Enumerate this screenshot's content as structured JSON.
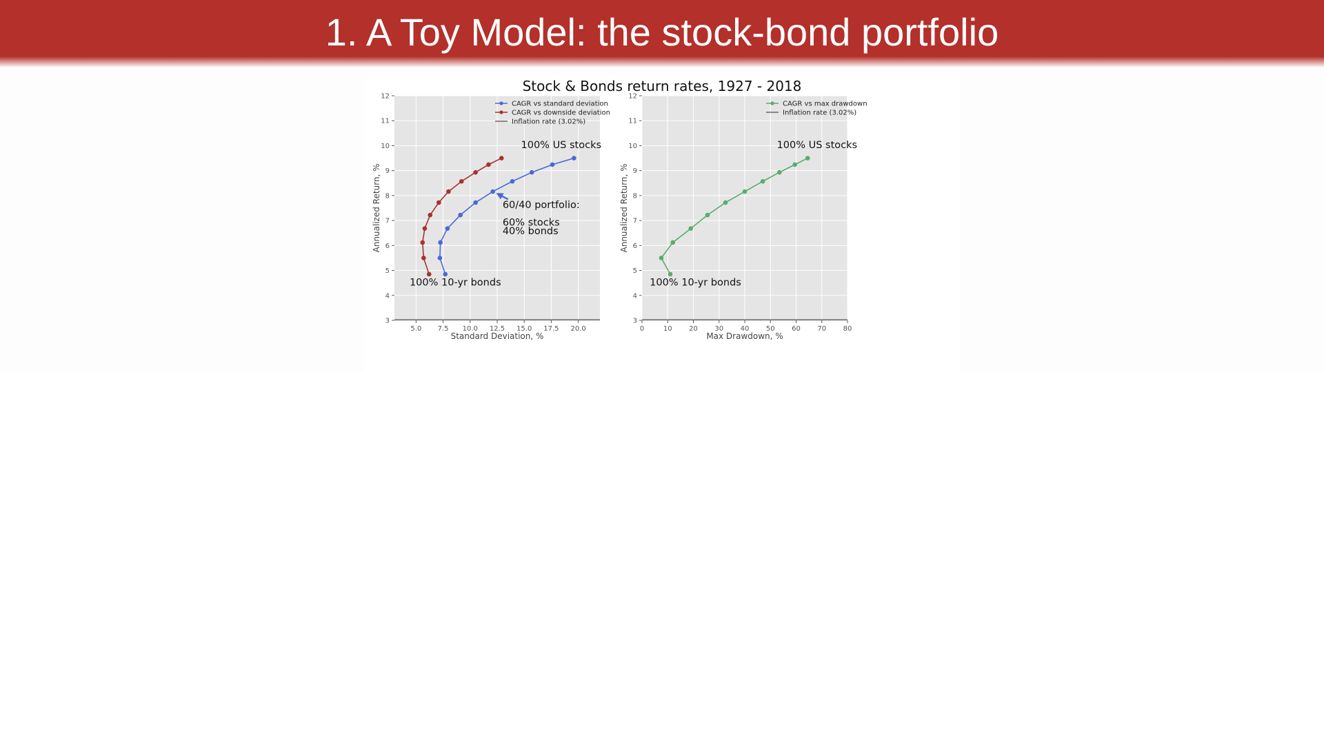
{
  "slide": {
    "title": "1. A Toy Model: the stock-bond portfolio"
  },
  "figure": {
    "title": "Stock & Bonds return rates, 1927 - 2018"
  },
  "colors": {
    "title_bar": "#b3302b",
    "std_series": "#4a69d6",
    "downside_series": "#a7322c",
    "drawdown_series": "#5aab6e",
    "inflation_line": "#666666",
    "plot_bg": "#e5e5e5"
  },
  "chart_data": [
    {
      "type": "line",
      "xlabel": "Standard Deviation, %",
      "ylabel": "Annualized Return, %",
      "xlim": [
        3.0,
        22.0
      ],
      "ylim": [
        3,
        12
      ],
      "xticks": [
        "5.0",
        "7.5",
        "10.0",
        "12.5",
        "15.0",
        "17.5",
        "20.0"
      ],
      "yticks": [
        "3",
        "4",
        "5",
        "6",
        "7",
        "8",
        "9",
        "10",
        "11",
        "12"
      ],
      "grid": true,
      "legend_position": "top-right",
      "series": [
        {
          "name": "CAGR vs standard deviation",
          "color": "#4a69d6",
          "x": [
            7.7,
            7.2,
            7.25,
            7.9,
            9.1,
            10.5,
            12.1,
            13.9,
            15.7,
            17.6,
            19.6
          ],
          "y": [
            4.85,
            5.5,
            6.12,
            6.68,
            7.22,
            7.72,
            8.16,
            8.57,
            8.93,
            9.24,
            9.5
          ]
        },
        {
          "name": "CAGR vs downside deviation",
          "color": "#a7322c",
          "x": [
            6.2,
            5.7,
            5.6,
            5.8,
            6.3,
            7.1,
            8.0,
            9.2,
            10.5,
            11.7,
            12.9
          ],
          "y": [
            4.85,
            5.5,
            6.12,
            6.68,
            7.22,
            7.72,
            8.16,
            8.57,
            8.93,
            9.24,
            9.5
          ]
        },
        {
          "name": "Inflation rate (3.02%)",
          "color": "#666666",
          "y_constant": 3.02
        }
      ],
      "annotations": [
        {
          "text": "100% US stocks",
          "x": 14.7,
          "y": 9.9
        },
        {
          "text": "60/40 portfolio:",
          "x": 13.0,
          "y": 7.5
        },
        {
          "text": "60% stocks",
          "x": 13.0,
          "y": 6.8
        },
        {
          "text": "40% bonds",
          "x": 13.0,
          "y": 6.45
        },
        {
          "text": "100% 10-yr bonds",
          "x": 4.4,
          "y": 4.4
        }
      ],
      "arrow": {
        "from": [
          13.5,
          7.85
        ],
        "to": [
          12.4,
          8.1
        ]
      }
    },
    {
      "type": "line",
      "xlabel": "Max Drawdown, %",
      "ylabel": "Annualized Return, %",
      "xlim": [
        0,
        80
      ],
      "ylim": [
        3,
        12
      ],
      "xticks": [
        "0",
        "10",
        "20",
        "30",
        "40",
        "50",
        "60",
        "70",
        "80"
      ],
      "yticks": [
        "3",
        "4",
        "5",
        "6",
        "7",
        "8",
        "9",
        "10",
        "11",
        "12"
      ],
      "grid": true,
      "legend_position": "top-right",
      "series": [
        {
          "name": "CAGR vs max drawdown",
          "color": "#5aab6e",
          "x": [
            11.0,
            7.5,
            12.0,
            19.0,
            25.5,
            32.5,
            40.0,
            47.0,
            53.5,
            59.5,
            64.5
          ],
          "y": [
            4.85,
            5.5,
            6.12,
            6.68,
            7.22,
            7.72,
            8.16,
            8.57,
            8.93,
            9.24,
            9.5
          ]
        },
        {
          "name": "Inflation rate (3.02%)",
          "color": "#666666",
          "y_constant": 3.02
        }
      ],
      "annotations": [
        {
          "text": "100% US stocks",
          "x": 52.5,
          "y": 9.9
        },
        {
          "text": "100% 10-yr bonds",
          "x": 3.0,
          "y": 4.4
        }
      ]
    }
  ]
}
